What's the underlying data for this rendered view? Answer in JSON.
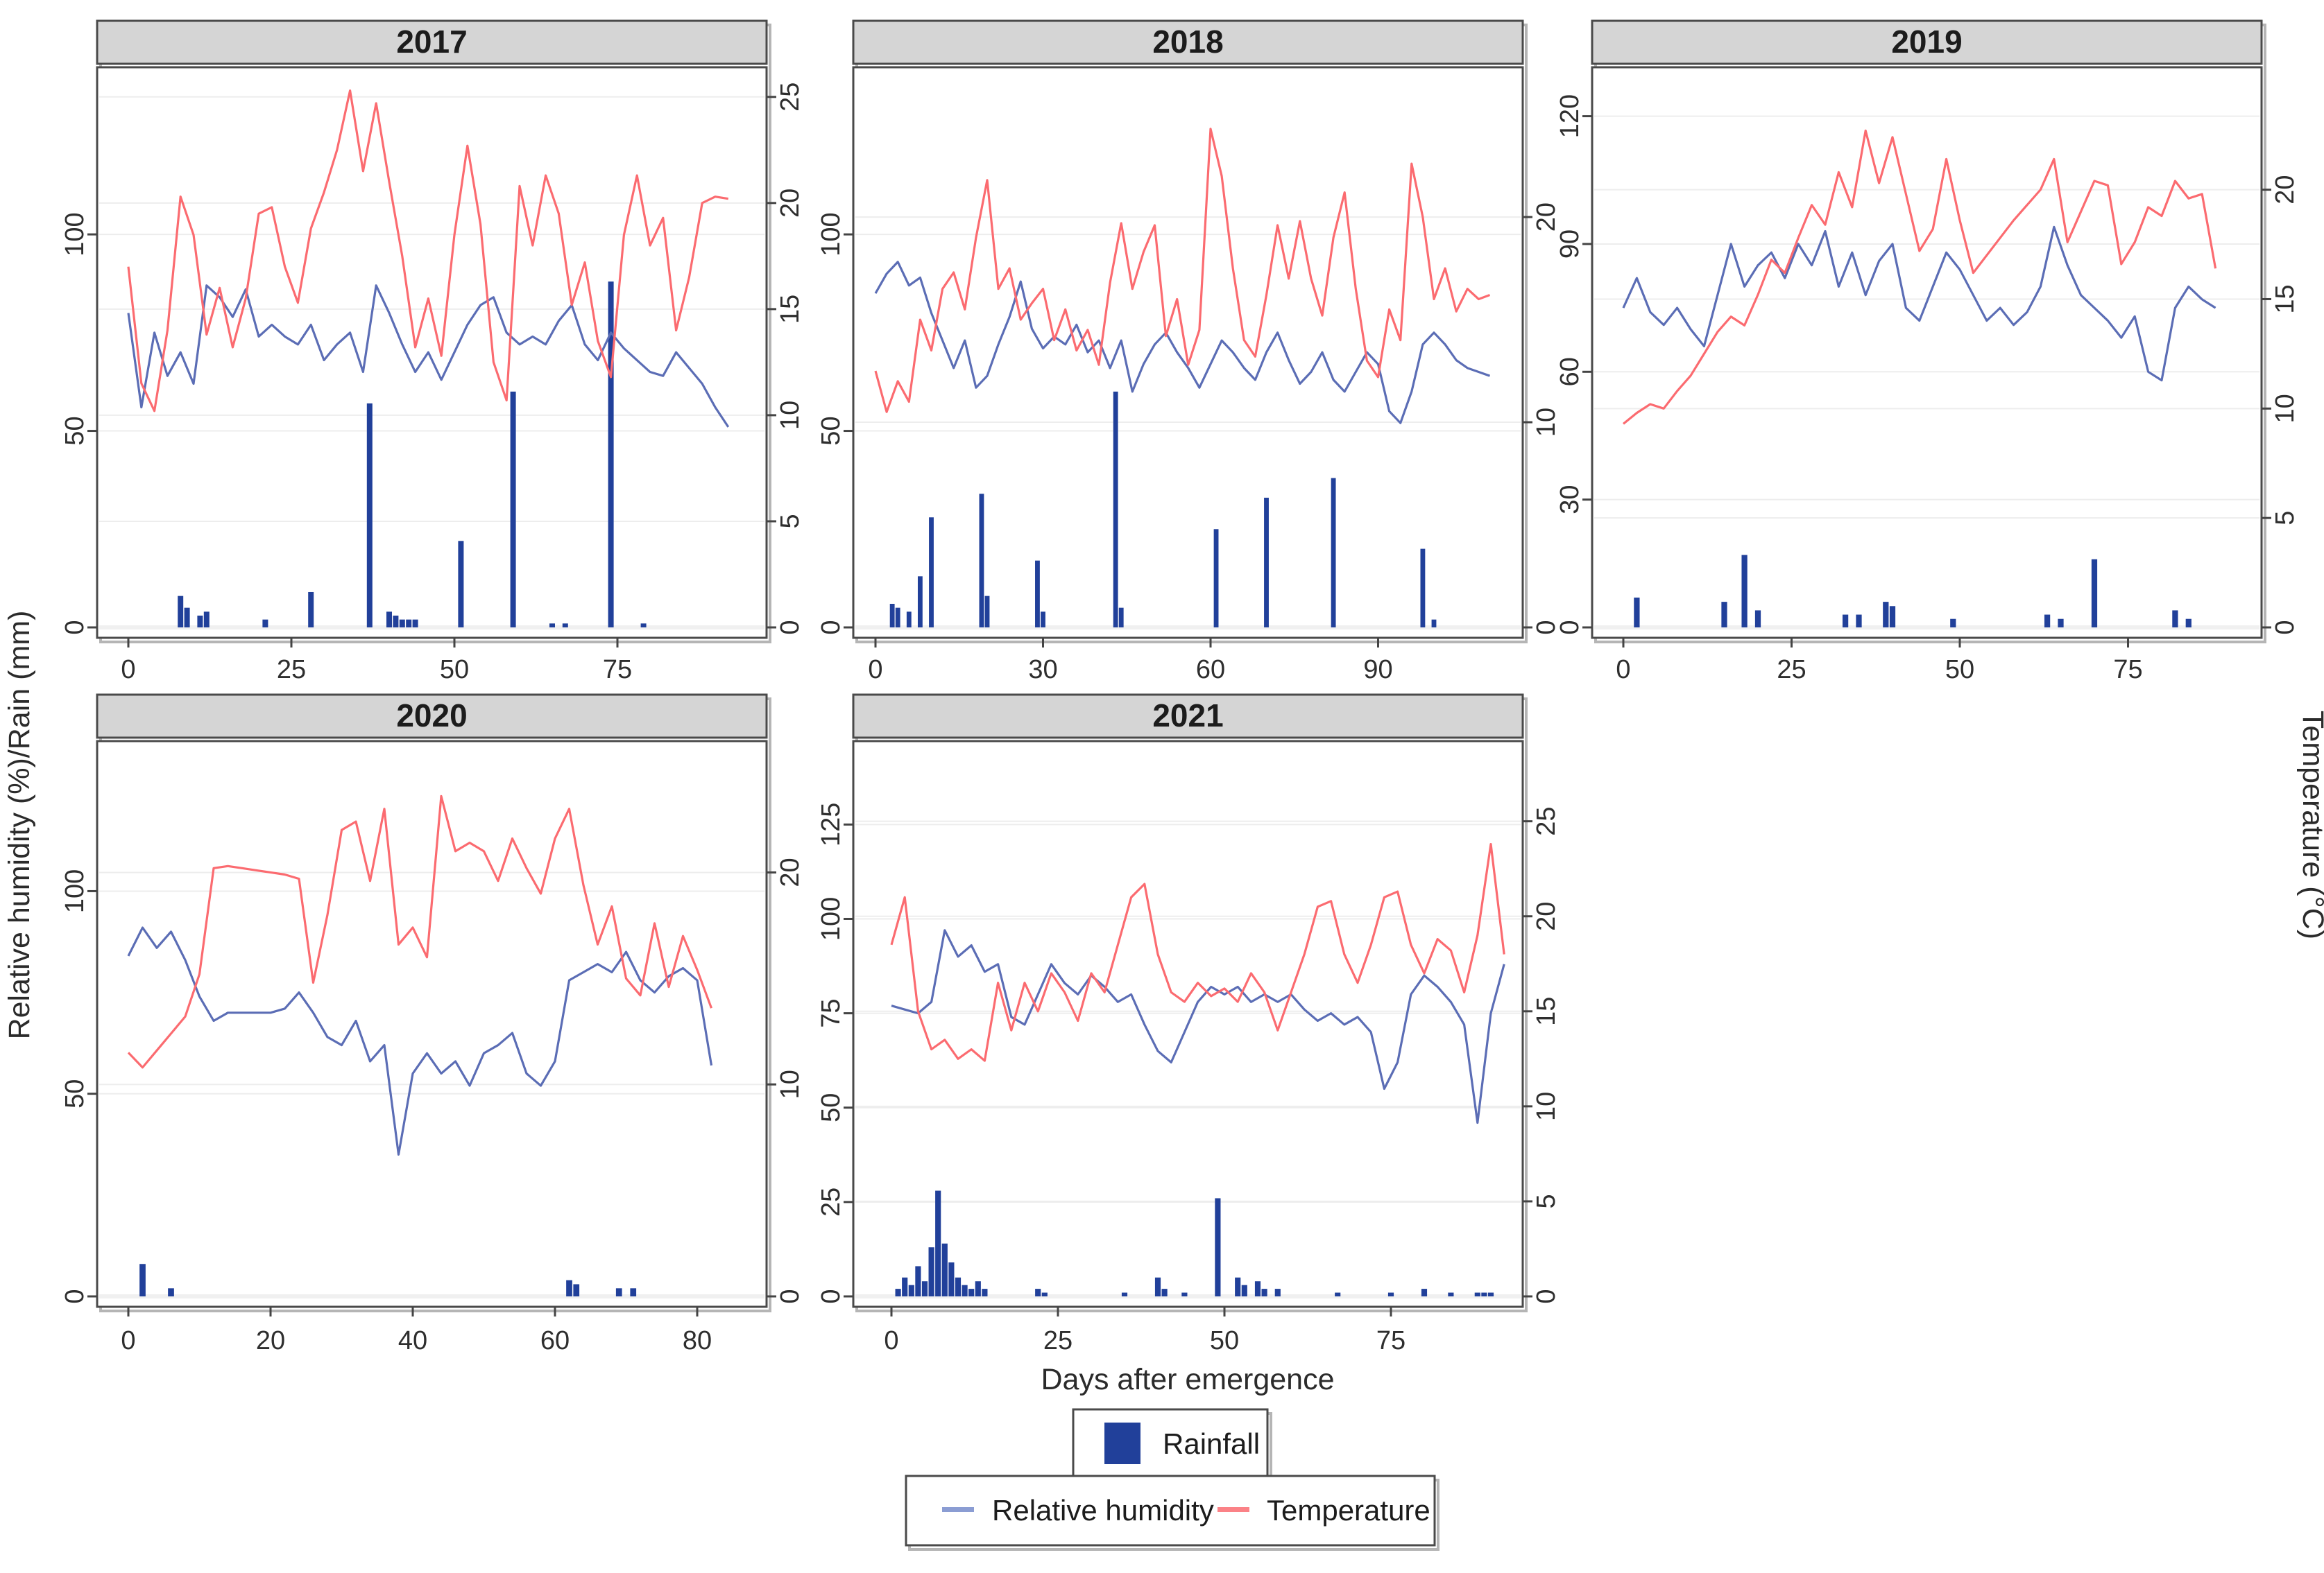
{
  "figure": {
    "left_axis_label": "Relative humidity (%)/Rain (mm)",
    "right_axis_label": "Temperature (°C)",
    "x_axis_label": "Days after emergence",
    "legend": {
      "rainfall_label": "Rainfall",
      "humidity_label": "Relative humidity",
      "temperature_label": "Temperature"
    },
    "colors": {
      "humidity_line": "#5b6db5",
      "temperature_line": "#fb6b70",
      "rainfall_bar": "#21409a",
      "humidity_swatch": "#8b9dd3",
      "temperature_swatch": "#fb8287",
      "header_bg": "#d5d5d5",
      "panel_border": "#4a4a4a",
      "shadow": "#b5b5b5",
      "grid": "#ededed",
      "tick_text": "#2e2e2e"
    }
  },
  "chart_data": [
    {
      "type": "line+bar",
      "title": "2017",
      "x_ticks": [
        0,
        25,
        50,
        75
      ],
      "left_ticks": [
        0,
        50,
        100
      ],
      "temp_ticks": [
        0,
        5,
        10,
        15,
        20,
        25
      ],
      "left_range": [
        0,
        142
      ],
      "temp_range": [
        0,
        26.3
      ],
      "x_range": [
        0,
        95
      ],
      "days": [
        0,
        2,
        4,
        6,
        8,
        10,
        12,
        14,
        16,
        18,
        20,
        22,
        24,
        26,
        28,
        30,
        32,
        34,
        36,
        38,
        40,
        42,
        44,
        46,
        48,
        50,
        52,
        54,
        56,
        58,
        60,
        62,
        64,
        66,
        68,
        70,
        72,
        74,
        76,
        78,
        80,
        82,
        84,
        86,
        88,
        90,
        92
      ],
      "humidity": [
        80,
        56,
        75,
        64,
        70,
        62,
        87,
        84,
        79,
        86,
        74,
        77,
        74,
        72,
        77,
        68,
        72,
        75,
        65,
        87,
        80,
        72,
        65,
        70,
        63,
        70,
        77,
        82,
        84,
        75,
        72,
        74,
        72,
        78,
        82,
        72,
        68,
        75,
        71,
        68,
        65,
        64,
        70,
        66,
        62,
        56,
        51
      ],
      "temperature": [
        17,
        11.5,
        10.2,
        14,
        20.3,
        18.5,
        13.8,
        16,
        13.2,
        15.5,
        19.5,
        19.8,
        17,
        15.3,
        18.8,
        20.5,
        22.5,
        25.3,
        21.5,
        24.7,
        21,
        17.5,
        13.2,
        15.5,
        12.8,
        18.5,
        22.7,
        19,
        12.5,
        10.7,
        20.8,
        18,
        21.3,
        19.5,
        15.2,
        17.2,
        13.5,
        11.8,
        18.5,
        21.3,
        18,
        19.3,
        14,
        16.5,
        20,
        20.3,
        20.2
      ],
      "rain": [
        [
          8,
          8
        ],
        [
          9,
          5
        ],
        [
          11,
          3
        ],
        [
          12,
          4
        ],
        [
          21,
          2
        ],
        [
          28,
          9
        ],
        [
          37,
          57
        ],
        [
          40,
          4
        ],
        [
          41,
          3
        ],
        [
          42,
          2
        ],
        [
          43,
          2
        ],
        [
          44,
          2
        ],
        [
          51,
          22
        ],
        [
          59,
          60
        ],
        [
          65,
          1
        ],
        [
          67,
          1
        ],
        [
          74,
          88
        ],
        [
          79,
          1
        ]
      ]
    },
    {
      "type": "line+bar",
      "title": "2018",
      "x_ticks": [
        0,
        30,
        60,
        90
      ],
      "left_ticks": [
        0,
        50,
        100
      ],
      "temp_ticks": [
        0,
        10,
        20
      ],
      "left_range": [
        0,
        142
      ],
      "temp_range": [
        0,
        27.2
      ],
      "x_range": [
        0,
        112
      ],
      "days": [
        0,
        2,
        4,
        6,
        8,
        10,
        12,
        14,
        16,
        18,
        20,
        22,
        24,
        26,
        28,
        30,
        32,
        34,
        36,
        38,
        40,
        42,
        44,
        46,
        48,
        50,
        52,
        54,
        56,
        58,
        60,
        62,
        64,
        66,
        68,
        70,
        72,
        74,
        76,
        78,
        80,
        82,
        84,
        86,
        88,
        90,
        92,
        94,
        96,
        98,
        100,
        102,
        104,
        106,
        108,
        110
      ],
      "humidity": [
        85,
        90,
        93,
        87,
        89,
        80,
        73,
        66,
        73,
        61,
        64,
        72,
        79,
        88,
        76,
        71,
        74,
        72,
        77,
        70,
        73,
        66,
        73,
        60,
        67,
        72,
        75,
        70,
        66,
        61,
        67,
        73,
        70,
        66,
        63,
        70,
        75,
        68,
        62,
        65,
        70,
        63,
        60,
        65,
        70,
        67,
        55,
        52,
        60,
        72,
        75,
        72,
        68,
        66,
        65,
        64
      ],
      "temperature": [
        12.5,
        10.5,
        12,
        11,
        15,
        13.5,
        16.5,
        17.3,
        15.5,
        19,
        21.8,
        16.5,
        17.5,
        15,
        15.8,
        16.5,
        14,
        15.5,
        13.5,
        14.5,
        12.8,
        16.8,
        19.7,
        16.5,
        18.3,
        19.6,
        14.2,
        16,
        12.8,
        14.5,
        24.3,
        22,
        17.5,
        14,
        13.2,
        16.2,
        19.6,
        17,
        19.8,
        17,
        15.2,
        19,
        21.2,
        16.5,
        13,
        12.2,
        15.5,
        14,
        22.6,
        20,
        16,
        17.5,
        15.4,
        16.5,
        16,
        16.2
      ],
      "rain": [
        [
          3,
          6
        ],
        [
          4,
          5
        ],
        [
          6,
          4
        ],
        [
          8,
          13
        ],
        [
          10,
          28
        ],
        [
          19,
          34
        ],
        [
          20,
          8
        ],
        [
          29,
          17
        ],
        [
          30,
          4
        ],
        [
          43,
          60
        ],
        [
          44,
          5
        ],
        [
          61,
          25
        ],
        [
          70,
          33
        ],
        [
          82,
          38
        ],
        [
          98,
          20
        ],
        [
          100,
          2
        ]
      ]
    },
    {
      "type": "line+bar",
      "title": "2019",
      "x_ticks": [
        0,
        25,
        50,
        75
      ],
      "left_ticks": [
        0,
        30,
        60,
        90,
        120
      ],
      "temp_ticks": [
        0,
        5,
        10,
        15,
        20
      ],
      "left_range": [
        0,
        131
      ],
      "temp_range": [
        0,
        25.5
      ],
      "x_range": [
        0,
        89
      ],
      "days": [
        0,
        2,
        4,
        6,
        8,
        10,
        12,
        14,
        16,
        18,
        20,
        22,
        24,
        26,
        28,
        30,
        32,
        34,
        36,
        38,
        40,
        42,
        44,
        46,
        48,
        50,
        52,
        54,
        56,
        58,
        60,
        62,
        64,
        66,
        68,
        70,
        72,
        74,
        76,
        78,
        80,
        82,
        84,
        86,
        88
      ],
      "humidity": [
        75,
        82,
        74,
        71,
        75,
        70,
        66,
        78,
        90,
        80,
        85,
        88,
        82,
        90,
        85,
        93,
        80,
        88,
        78,
        86,
        90,
        75,
        72,
        80,
        88,
        84,
        78,
        72,
        75,
        71,
        74,
        80,
        94,
        85,
        78,
        75,
        72,
        68,
        73,
        60,
        58,
        75,
        80,
        77,
        75
      ],
      "temperature": [
        9.3,
        9.8,
        10.2,
        10,
        10.8,
        11.5,
        12.5,
        13.5,
        14.2,
        13.8,
        15.2,
        16.8,
        16.2,
        17.8,
        19.3,
        18.4,
        20.8,
        19.2,
        22.7,
        20.3,
        22.4,
        19.8,
        17.2,
        18.2,
        21.4,
        18.6,
        16.2,
        17,
        17.8,
        18.6,
        19.3,
        20,
        21.4,
        17.6,
        19,
        20.4,
        20.2,
        16.6,
        17.6,
        19.2,
        18.8,
        20.4,
        19.6,
        19.8,
        16.4
      ],
      "rain": [
        [
          2,
          7
        ],
        [
          15,
          6
        ],
        [
          18,
          17
        ],
        [
          20,
          4
        ],
        [
          33,
          3
        ],
        [
          35,
          3
        ],
        [
          39,
          6
        ],
        [
          40,
          5
        ],
        [
          49,
          2
        ],
        [
          63,
          3
        ],
        [
          65,
          2
        ],
        [
          70,
          16
        ],
        [
          82,
          4
        ],
        [
          84,
          2
        ]
      ]
    },
    {
      "type": "line+bar",
      "title": "2020",
      "x_ticks": [
        0,
        20,
        40,
        60,
        80
      ],
      "left_ticks": [
        0,
        50,
        100
      ],
      "temp_ticks": [
        0,
        10,
        20
      ],
      "left_range": [
        0,
        136
      ],
      "temp_range": [
        0,
        26
      ],
      "x_range": [
        0,
        87
      ],
      "days": [
        0,
        2,
        4,
        6,
        8,
        10,
        12,
        14,
        16,
        18,
        20,
        22,
        24,
        26,
        28,
        30,
        32,
        34,
        36,
        38,
        40,
        42,
        44,
        46,
        48,
        50,
        52,
        54,
        56,
        58,
        60,
        62,
        64,
        66,
        68,
        70,
        72,
        74,
        76,
        78,
        80,
        82
      ],
      "humidity": [
        84,
        91,
        86,
        90,
        83,
        74,
        68,
        70,
        70,
        70,
        70,
        71,
        75,
        70,
        64,
        62,
        68,
        58,
        62,
        35,
        55,
        60,
        55,
        58,
        52,
        60,
        62,
        65,
        55,
        52,
        58,
        78,
        80,
        82,
        80,
        85,
        78,
        75,
        79,
        81,
        78,
        57
      ],
      "temperature": [
        11.5,
        10.8,
        11.6,
        12.4,
        13.2,
        15.2,
        20.2,
        20.3,
        20.2,
        20.1,
        20,
        19.9,
        19.7,
        14.8,
        18,
        22,
        22.4,
        19.6,
        23,
        16.6,
        17.4,
        16,
        23.6,
        21,
        21.4,
        21,
        19.6,
        21.6,
        20.2,
        19,
        21.6,
        23,
        19.4,
        16.6,
        18.4,
        15,
        14.2,
        17.6,
        14.6,
        17,
        15.4,
        13.6
      ],
      "rain": [
        [
          2,
          8
        ],
        [
          6,
          2
        ],
        [
          62,
          4
        ],
        [
          63,
          3
        ],
        [
          69,
          2
        ],
        [
          71,
          2
        ]
      ]
    },
    {
      "type": "line+bar",
      "title": "2021",
      "x_ticks": [
        0,
        25,
        50,
        75
      ],
      "left_ticks": [
        0,
        25,
        50,
        75,
        100,
        125
      ],
      "temp_ticks": [
        0,
        5,
        10,
        15,
        20,
        25
      ],
      "left_range": [
        0,
        146
      ],
      "temp_range": [
        0,
        29
      ],
      "x_range": [
        0,
        94
      ],
      "days": [
        0,
        2,
        4,
        6,
        8,
        10,
        12,
        14,
        16,
        18,
        20,
        22,
        24,
        26,
        28,
        30,
        32,
        34,
        36,
        38,
        40,
        42,
        44,
        46,
        48,
        50,
        52,
        54,
        56,
        58,
        60,
        62,
        64,
        66,
        68,
        70,
        72,
        74,
        76,
        78,
        80,
        82,
        84,
        86,
        88,
        90,
        92
      ],
      "humidity": [
        77,
        76,
        75,
        78,
        97,
        90,
        93,
        86,
        88,
        74,
        72,
        80,
        88,
        83,
        80,
        85,
        82,
        78,
        80,
        72,
        65,
        62,
        70,
        78,
        82,
        80,
        82,
        78,
        80,
        78,
        80,
        76,
        73,
        75,
        72,
        74,
        70,
        55,
        62,
        80,
        85,
        82,
        78,
        72,
        46,
        75,
        88
      ],
      "temperature": [
        18.5,
        21,
        15,
        13,
        13.5,
        12.5,
        13,
        12.4,
        16.5,
        14,
        16.5,
        15,
        17,
        16,
        14.5,
        17,
        16,
        18.5,
        21,
        21.7,
        18,
        16,
        15.5,
        16.5,
        15.8,
        16.2,
        15.5,
        17,
        16,
        14,
        16,
        18,
        20.5,
        20.8,
        18,
        16.5,
        18.5,
        21,
        21.3,
        18.5,
        17,
        18.8,
        18.2,
        16,
        19,
        23.8,
        18
      ],
      "rain": [
        [
          1,
          2
        ],
        [
          2,
          5
        ],
        [
          3,
          3
        ],
        [
          4,
          8
        ],
        [
          5,
          4
        ],
        [
          6,
          13
        ],
        [
          7,
          28
        ],
        [
          8,
          14
        ],
        [
          9,
          9
        ],
        [
          10,
          5
        ],
        [
          11,
          3
        ],
        [
          12,
          2
        ],
        [
          13,
          4
        ],
        [
          14,
          2
        ],
        [
          22,
          2
        ],
        [
          23,
          1
        ],
        [
          35,
          1
        ],
        [
          40,
          5
        ],
        [
          41,
          2
        ],
        [
          44,
          1
        ],
        [
          49,
          26
        ],
        [
          52,
          5
        ],
        [
          53,
          3
        ],
        [
          55,
          4
        ],
        [
          56,
          2
        ],
        [
          58,
          2
        ],
        [
          67,
          1
        ],
        [
          75,
          1
        ],
        [
          80,
          2
        ],
        [
          84,
          1
        ],
        [
          88,
          1
        ],
        [
          89,
          1
        ],
        [
          90,
          1
        ]
      ]
    }
  ]
}
